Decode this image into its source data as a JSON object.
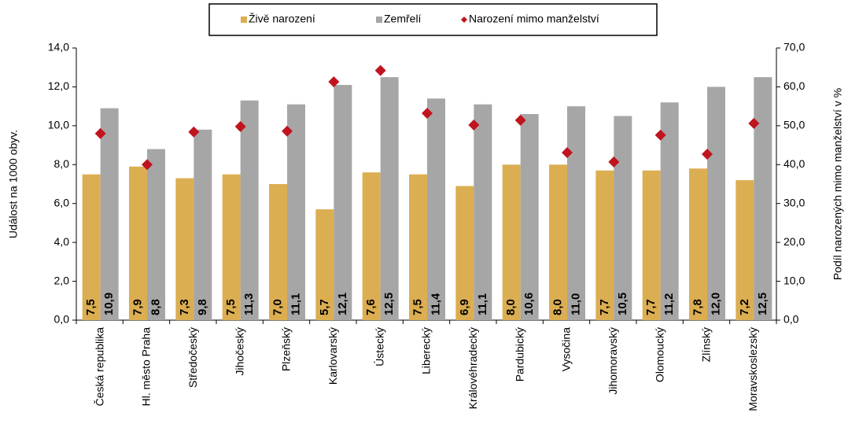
{
  "chart_data": {
    "type": "bar",
    "categories": [
      "Česká republika",
      "Hl. město Praha",
      "Středočeský",
      "Jihočeský",
      "Plzeňský",
      "Karlovarský",
      "Ústecký",
      "Liberecký",
      "Královéhradecký",
      "Pardubický",
      "Vysočina",
      "Jihomoravský",
      "Olomoucký",
      "Zlínský",
      "Moravskoslezský"
    ],
    "series": [
      {
        "name": "Živě narození",
        "color": "#dcae52",
        "values": [
          7.5,
          7.9,
          7.3,
          7.5,
          7.0,
          5.7,
          7.6,
          7.5,
          6.9,
          8.0,
          8.0,
          7.7,
          7.7,
          7.8,
          7.2
        ],
        "value_labels": [
          "7,5",
          "7,9",
          "7,3",
          "7,5",
          "7,0",
          "5,7",
          "7,6",
          "7,5",
          "6,9",
          "8,0",
          "8,0",
          "7,7",
          "7,7",
          "7,8",
          "7,2"
        ]
      },
      {
        "name": "Zemřelí",
        "color": "#a6a6a6",
        "values": [
          10.9,
          8.8,
          9.8,
          11.3,
          11.1,
          12.1,
          12.5,
          11.4,
          11.1,
          10.6,
          11.0,
          10.5,
          11.2,
          12.0,
          12.5
        ],
        "value_labels": [
          "10,9",
          "8,8",
          "9,8",
          "11,3",
          "11,1",
          "12,1",
          "12,5",
          "11,4",
          "11,1",
          "10,6",
          "11,0",
          "10,5",
          "11,2",
          "12,0",
          "12,5"
        ]
      },
      {
        "name": "Narození mimo manželství",
        "color": "#c0141e",
        "axis": "y2",
        "values": [
          48.0,
          40.0,
          48.4,
          49.8,
          48.6,
          61.3,
          64.2,
          53.2,
          50.2,
          51.4,
          43.1,
          40.7,
          47.6,
          42.7,
          50.6
        ]
      }
    ],
    "y_label": "Událost na 1000 obyv.",
    "y2_label": "Podíl narozených mimo manželství v %",
    "ylim": [
      0,
      14
    ],
    "yticks": [
      {
        "value": 0,
        "label": "0,0"
      },
      {
        "value": 2,
        "label": "2,0"
      },
      {
        "value": 4,
        "label": "4,0"
      },
      {
        "value": 6,
        "label": "6,0"
      },
      {
        "value": 8,
        "label": "8,0"
      },
      {
        "value": 10,
        "label": "10,0"
      },
      {
        "value": 12,
        "label": "12,0"
      },
      {
        "value": 14,
        "label": "14,0"
      }
    ],
    "y2lim": [
      0,
      70
    ],
    "y2ticks": [
      {
        "value": 0,
        "label": "0,0"
      },
      {
        "value": 10,
        "label": "10,0"
      },
      {
        "value": 20,
        "label": "20,0"
      },
      {
        "value": 30,
        "label": "30,0"
      },
      {
        "value": 40,
        "label": "40,0"
      },
      {
        "value": 50,
        "label": "50,0"
      },
      {
        "value": 60,
        "label": "60,0"
      },
      {
        "value": 70,
        "label": "70,0"
      }
    ],
    "legend": "top"
  }
}
